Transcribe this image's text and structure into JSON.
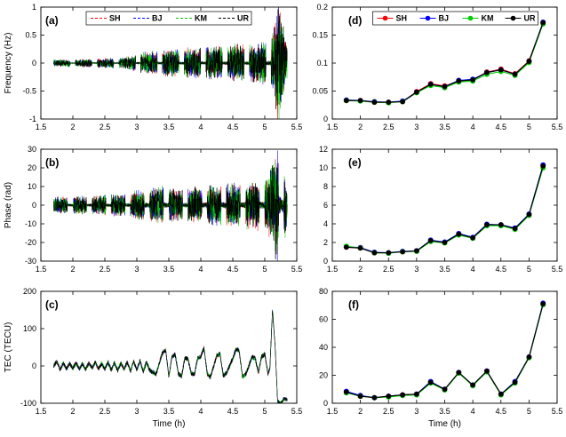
{
  "figure": {
    "background": "#ffffff",
    "axis_color": "#000000",
    "series_meta": [
      {
        "name": "SH",
        "color": "#ff0000"
      },
      {
        "name": "BJ",
        "color": "#0000ff"
      },
      {
        "name": "KM",
        "color": "#00cc00"
      },
      {
        "name": "UR",
        "color": "#000000"
      }
    ],
    "time_axis_label": "Time (h)"
  },
  "chart_data": [
    {
      "id": "a",
      "panel_label": "(a)",
      "type": "line",
      "series_kind": "noisy",
      "title": "",
      "ylabel": "Frequency (Hz)",
      "xlabel": "",
      "xlim": [
        1.5,
        5.5
      ],
      "ylim": [
        -1,
        1
      ],
      "xticks": [
        1.5,
        2,
        2.5,
        3,
        3.5,
        4,
        4.5,
        5,
        5.5
      ],
      "yticks": [
        -1,
        -0.5,
        0,
        0.5,
        1
      ],
      "legend": {
        "show": true,
        "style": "dashed",
        "entries": [
          "SH",
          "BJ",
          "KM",
          "UR"
        ]
      },
      "noise": {
        "x_start": 1.7,
        "x_end": 5.35,
        "points": 1600,
        "burst_period": 0.34,
        "burst_duty": 0.76,
        "quiet_level": 0.1,
        "trend": [],
        "envelope": [
          [
            1.7,
            0.05
          ],
          [
            2.2,
            0.06
          ],
          [
            2.8,
            0.08
          ],
          [
            3.1,
            0.15
          ],
          [
            3.3,
            0.18
          ],
          [
            3.6,
            0.2
          ],
          [
            4.0,
            0.22
          ],
          [
            4.4,
            0.25
          ],
          [
            4.8,
            0.28
          ],
          [
            5.05,
            0.3
          ],
          [
            5.15,
            0.55
          ],
          [
            5.22,
            0.95
          ],
          [
            5.3,
            0.5
          ],
          [
            5.35,
            0.25
          ]
        ]
      }
    },
    {
      "id": "b",
      "panel_label": "(b)",
      "type": "line",
      "series_kind": "noisy",
      "title": "",
      "ylabel": "Phase (rad)",
      "xlabel": "",
      "xlim": [
        1.5,
        5.5
      ],
      "ylim": [
        -30,
        30
      ],
      "xticks": [
        1.5,
        2,
        2.5,
        3,
        3.5,
        4,
        4.5,
        5,
        5.5
      ],
      "yticks": [
        -30,
        -20,
        -10,
        0,
        10,
        20,
        30
      ],
      "legend": {
        "show": false
      },
      "noise": {
        "x_start": 1.7,
        "x_end": 5.35,
        "points": 1500,
        "burst_period": 0.3,
        "burst_duty": 0.72,
        "quiet_level": 0.15,
        "trend": [],
        "envelope": [
          [
            1.7,
            3.5
          ],
          [
            2.2,
            4
          ],
          [
            2.8,
            5
          ],
          [
            3.1,
            7
          ],
          [
            3.4,
            8
          ],
          [
            3.7,
            7
          ],
          [
            4.0,
            8
          ],
          [
            4.4,
            9
          ],
          [
            4.8,
            10
          ],
          [
            5.05,
            12
          ],
          [
            5.15,
            20
          ],
          [
            5.22,
            29
          ],
          [
            5.3,
            18
          ],
          [
            5.35,
            8
          ]
        ]
      }
    },
    {
      "id": "c",
      "panel_label": "(c)",
      "type": "line",
      "series_kind": "noisy",
      "title": "",
      "ylabel": "TEC (TECU)",
      "xlabel": "Time (h)",
      "xlim": [
        1.5,
        5.5
      ],
      "ylim": [
        -100,
        200
      ],
      "xticks": [
        1.5,
        2,
        2.5,
        3,
        3.5,
        4,
        4.5,
        5,
        5.5
      ],
      "yticks": [
        -100,
        0,
        100,
        200
      ],
      "legend": {
        "show": false
      },
      "noise": {
        "x_start": 1.7,
        "x_end": 5.35,
        "points": 1600,
        "burst_period": 0,
        "burst_duty": 1,
        "quiet_level": 1,
        "trend": [
          [
            1.7,
            0
          ],
          [
            1.75,
            12
          ],
          [
            1.8,
            -10
          ],
          [
            1.85,
            8
          ],
          [
            1.9,
            -8
          ],
          [
            1.95,
            6
          ],
          [
            2.0,
            -6
          ],
          [
            2.05,
            8
          ],
          [
            2.1,
            -8
          ],
          [
            2.15,
            6
          ],
          [
            2.2,
            -10
          ],
          [
            2.25,
            8
          ],
          [
            2.3,
            -6
          ],
          [
            2.35,
            10
          ],
          [
            2.4,
            -8
          ],
          [
            2.45,
            6
          ],
          [
            2.5,
            -8
          ],
          [
            2.55,
            10
          ],
          [
            2.6,
            -10
          ],
          [
            2.65,
            8
          ],
          [
            2.7,
            -12
          ],
          [
            2.75,
            8
          ],
          [
            2.8,
            -8
          ],
          [
            2.85,
            10
          ],
          [
            2.9,
            -14
          ],
          [
            2.95,
            12
          ],
          [
            3.0,
            -10
          ],
          [
            3.05,
            14
          ],
          [
            3.1,
            -16
          ],
          [
            3.15,
            10
          ],
          [
            3.2,
            -12
          ],
          [
            3.3,
            -22
          ],
          [
            3.4,
            35
          ],
          [
            3.45,
            42
          ],
          [
            3.5,
            -28
          ],
          [
            3.55,
            25
          ],
          [
            3.6,
            30
          ],
          [
            3.65,
            -22
          ],
          [
            3.7,
            -28
          ],
          [
            3.75,
            22
          ],
          [
            3.8,
            18
          ],
          [
            3.85,
            -20
          ],
          [
            3.9,
            -24
          ],
          [
            3.95,
            20
          ],
          [
            4.0,
            26
          ],
          [
            4.05,
            48
          ],
          [
            4.1,
            -20
          ],
          [
            4.15,
            -30
          ],
          [
            4.25,
            28
          ],
          [
            4.3,
            32
          ],
          [
            4.35,
            -24
          ],
          [
            4.4,
            -20
          ],
          [
            4.5,
            20
          ],
          [
            4.55,
            45
          ],
          [
            4.6,
            40
          ],
          [
            4.65,
            -28
          ],
          [
            4.7,
            -24
          ],
          [
            4.8,
            24
          ],
          [
            4.85,
            20
          ],
          [
            4.9,
            -18
          ],
          [
            4.95,
            25
          ],
          [
            5.0,
            32
          ],
          [
            5.05,
            -22
          ],
          [
            5.08,
            -5
          ],
          [
            5.12,
            148
          ],
          [
            5.16,
            60
          ],
          [
            5.2,
            -95
          ],
          [
            5.25,
            -100
          ],
          [
            5.3,
            -88
          ],
          [
            5.35,
            -90
          ]
        ],
        "envelope": [
          [
            1.7,
            5
          ],
          [
            5.0,
            6
          ],
          [
            5.35,
            4
          ]
        ]
      }
    },
    {
      "id": "d",
      "panel_label": "(d)",
      "type": "line",
      "series_kind": "markers",
      "title": "",
      "ylabel": "",
      "xlabel": "",
      "xlim": [
        1.5,
        5.5
      ],
      "ylim": [
        0,
        0.2
      ],
      "xticks": [
        1.5,
        2,
        2.5,
        3,
        3.5,
        4,
        4.5,
        5,
        5.5
      ],
      "yticks": [
        0,
        0.05,
        0.1,
        0.15,
        0.2
      ],
      "legend": {
        "show": true,
        "style": "marker",
        "entries": [
          "SH",
          "BJ",
          "KM",
          "UR"
        ]
      },
      "x": [
        1.75,
        2,
        2.25,
        2.5,
        2.75,
        3,
        3.25,
        3.5,
        3.75,
        4,
        4.25,
        4.5,
        4.75,
        5,
        5.25
      ],
      "series": [
        {
          "name": "SH",
          "values": [
            0.033,
            0.033,
            0.03,
            0.03,
            0.031,
            0.049,
            0.063,
            0.059,
            0.068,
            0.07,
            0.084,
            0.089,
            0.081,
            0.104,
            0.172
          ]
        },
        {
          "name": "BJ",
          "values": [
            0.034,
            0.033,
            0.031,
            0.03,
            0.032,
            0.048,
            0.062,
            0.058,
            0.069,
            0.071,
            0.083,
            0.088,
            0.08,
            0.103,
            0.173
          ]
        },
        {
          "name": "KM",
          "values": [
            0.033,
            0.032,
            0.03,
            0.029,
            0.031,
            0.047,
            0.06,
            0.056,
            0.066,
            0.068,
            0.08,
            0.085,
            0.078,
            0.101,
            0.17
          ]
        },
        {
          "name": "UR",
          "values": [
            0.033,
            0.033,
            0.03,
            0.03,
            0.031,
            0.048,
            0.062,
            0.058,
            0.068,
            0.07,
            0.083,
            0.088,
            0.08,
            0.103,
            0.172
          ]
        }
      ]
    },
    {
      "id": "e",
      "panel_label": "(e)",
      "type": "line",
      "series_kind": "markers",
      "title": "",
      "ylabel": "",
      "xlabel": "",
      "xlim": [
        1.5,
        5.5
      ],
      "ylim": [
        0,
        12
      ],
      "xticks": [
        1.5,
        2,
        2.5,
        3,
        3.5,
        4,
        4.5,
        5,
        5.5
      ],
      "yticks": [
        0,
        2,
        4,
        6,
        8,
        10,
        12
      ],
      "legend": {
        "show": false
      },
      "x": [
        1.75,
        2,
        2.25,
        2.5,
        2.75,
        3,
        3.25,
        3.5,
        3.75,
        4,
        4.25,
        4.5,
        4.75,
        5,
        5.25
      ],
      "series": [
        {
          "name": "SH",
          "values": [
            1.5,
            1.4,
            0.9,
            0.9,
            1.0,
            1.1,
            2.2,
            2.0,
            2.9,
            2.5,
            3.9,
            3.9,
            3.5,
            5.0,
            10.2
          ]
        },
        {
          "name": "BJ",
          "values": [
            1.55,
            1.45,
            0.95,
            0.9,
            1.05,
            1.1,
            2.25,
            2.05,
            2.95,
            2.55,
            3.95,
            3.9,
            3.55,
            5.05,
            10.3
          ]
        },
        {
          "name": "KM",
          "values": [
            1.6,
            1.4,
            0.9,
            0.85,
            1.0,
            1.05,
            2.1,
            1.95,
            2.8,
            2.45,
            3.8,
            3.8,
            3.4,
            4.9,
            10.0
          ]
        },
        {
          "name": "UR",
          "values": [
            1.5,
            1.4,
            0.9,
            0.9,
            1.0,
            1.1,
            2.2,
            2.0,
            2.9,
            2.5,
            3.9,
            3.9,
            3.5,
            5.0,
            10.2
          ]
        }
      ]
    },
    {
      "id": "f",
      "panel_label": "(f)",
      "type": "line",
      "series_kind": "markers",
      "title": "",
      "ylabel": "",
      "xlabel": "Time (h)",
      "xlim": [
        1.5,
        5.5
      ],
      "ylim": [
        0,
        80
      ],
      "xticks": [
        1.5,
        2,
        2.5,
        3,
        3.5,
        4,
        4.5,
        5,
        5.5
      ],
      "yticks": [
        0,
        20,
        40,
        60,
        80
      ],
      "legend": {
        "show": false
      },
      "x": [
        1.75,
        2,
        2.25,
        2.5,
        2.75,
        3,
        3.25,
        3.5,
        3.75,
        4,
        4.25,
        4.5,
        4.75,
        5,
        5.25
      ],
      "series": [
        {
          "name": "SH",
          "values": [
            8,
            5,
            4,
            5,
            6,
            6.5,
            15,
            10,
            22,
            13,
            23,
            6.5,
            15,
            33,
            71
          ]
        },
        {
          "name": "BJ",
          "values": [
            8.5,
            5.5,
            4,
            5,
            6,
            6.5,
            15.5,
            10,
            22,
            13,
            23,
            6.5,
            15.5,
            33,
            71.5
          ]
        },
        {
          "name": "KM",
          "values": [
            7.5,
            5,
            4,
            4.5,
            5.5,
            6,
            14.5,
            9.5,
            21.5,
            12.5,
            22.5,
            6,
            14.5,
            32.5,
            70.5
          ]
        },
        {
          "name": "UR",
          "values": [
            8,
            5,
            4,
            5,
            6,
            6.5,
            15,
            10,
            22,
            13,
            23,
            6.5,
            15,
            33,
            71
          ]
        }
      ]
    }
  ]
}
